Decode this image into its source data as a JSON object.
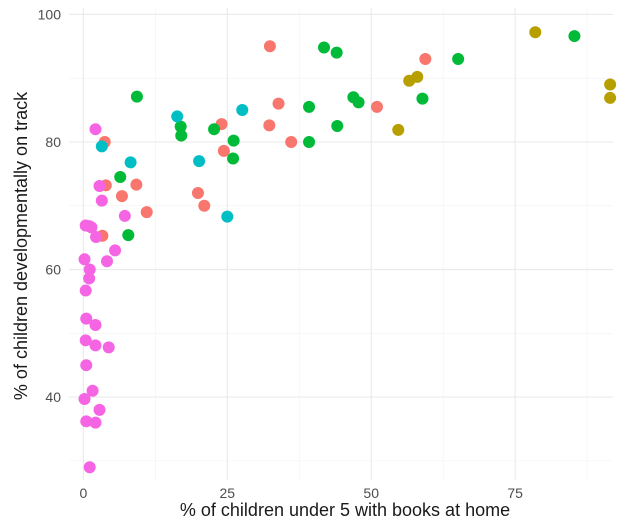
{
  "chart_data": {
    "type": "scatter",
    "title": "",
    "xlabel": "% of children under 5 with books at home",
    "ylabel": "% of children developmentally on track",
    "xlim": [
      -2.5,
      92
    ],
    "ylim": [
      27,
      101
    ],
    "x_ticks": [
      0,
      25,
      50,
      75
    ],
    "y_ticks": [
      40,
      60,
      80,
      100
    ],
    "x_tick_labels": [
      "0",
      "25",
      "50",
      "75"
    ],
    "y_tick_labels": [
      "40",
      "60",
      "80",
      "100"
    ],
    "grid": true,
    "legend": "none",
    "series": [
      {
        "color": "#F8766D",
        "points": [
          [
            32.4,
            95
          ],
          [
            33.9,
            86
          ],
          [
            32.3,
            82.6
          ],
          [
            36.1,
            80
          ],
          [
            24.0,
            82.8
          ],
          [
            24.4,
            78.6
          ],
          [
            51.0,
            85.5
          ],
          [
            59.4,
            93.0
          ],
          [
            3.7,
            80.0
          ],
          [
            9.2,
            73.3
          ],
          [
            3.9,
            73.2
          ],
          [
            6.7,
            71.5
          ],
          [
            19.9,
            72.0
          ],
          [
            21.0,
            70.0
          ],
          [
            11.0,
            69.0
          ],
          [
            3.3,
            65.3
          ]
        ]
      },
      {
        "color": "#B79F00",
        "points": [
          [
            78.5,
            97.2
          ],
          [
            91.5,
            89.0
          ],
          [
            91.5,
            86.9
          ],
          [
            58.0,
            90.2
          ],
          [
            56.6,
            89.6
          ],
          [
            54.7,
            81.9
          ]
        ]
      },
      {
        "color": "#00BA38",
        "points": [
          [
            41.8,
            94.8
          ],
          [
            44.0,
            94.0
          ],
          [
            65.1,
            93.0
          ],
          [
            85.3,
            96.6
          ],
          [
            9.3,
            87.1
          ],
          [
            46.9,
            87.0
          ],
          [
            47.8,
            86.2
          ],
          [
            39.2,
            85.5
          ],
          [
            58.9,
            86.8
          ],
          [
            16.9,
            82.4
          ],
          [
            17.0,
            81.0
          ],
          [
            22.7,
            82.0
          ],
          [
            44.1,
            82.5
          ],
          [
            26.1,
            80.2
          ],
          [
            39.2,
            80.0
          ],
          [
            26.0,
            77.4
          ],
          [
            6.4,
            74.5
          ],
          [
            7.8,
            65.4
          ]
        ]
      },
      {
        "color": "#00BFC4",
        "points": [
          [
            16.3,
            84.0
          ],
          [
            27.6,
            85.0
          ],
          [
            3.2,
            79.3
          ],
          [
            8.2,
            76.8
          ],
          [
            20.1,
            77.0
          ],
          [
            25.0,
            68.3
          ]
        ]
      },
      {
        "color": "#F564E3",
        "points": [
          [
            2.1,
            82.0
          ],
          [
            2.8,
            73.1
          ],
          [
            3.2,
            70.8
          ],
          [
            7.2,
            68.4
          ],
          [
            0.4,
            66.9
          ],
          [
            1.4,
            66.6
          ],
          [
            1.0,
            66.8
          ],
          [
            2.2,
            65.1
          ],
          [
            5.5,
            63.0
          ],
          [
            0.2,
            61.6
          ],
          [
            4.1,
            61.3
          ],
          [
            1.1,
            60.0
          ],
          [
            1.0,
            58.6
          ],
          [
            0.4,
            56.7
          ],
          [
            0.5,
            52.3
          ],
          [
            2.1,
            51.3
          ],
          [
            0.4,
            48.9
          ],
          [
            2.1,
            48.1
          ],
          [
            4.4,
            47.8
          ],
          [
            0.5,
            45.0
          ],
          [
            1.6,
            41.0
          ],
          [
            0.2,
            39.7
          ],
          [
            2.8,
            38.0
          ],
          [
            0.5,
            36.2
          ],
          [
            2.1,
            36.0
          ],
          [
            1.1,
            29.0
          ]
        ]
      }
    ]
  }
}
